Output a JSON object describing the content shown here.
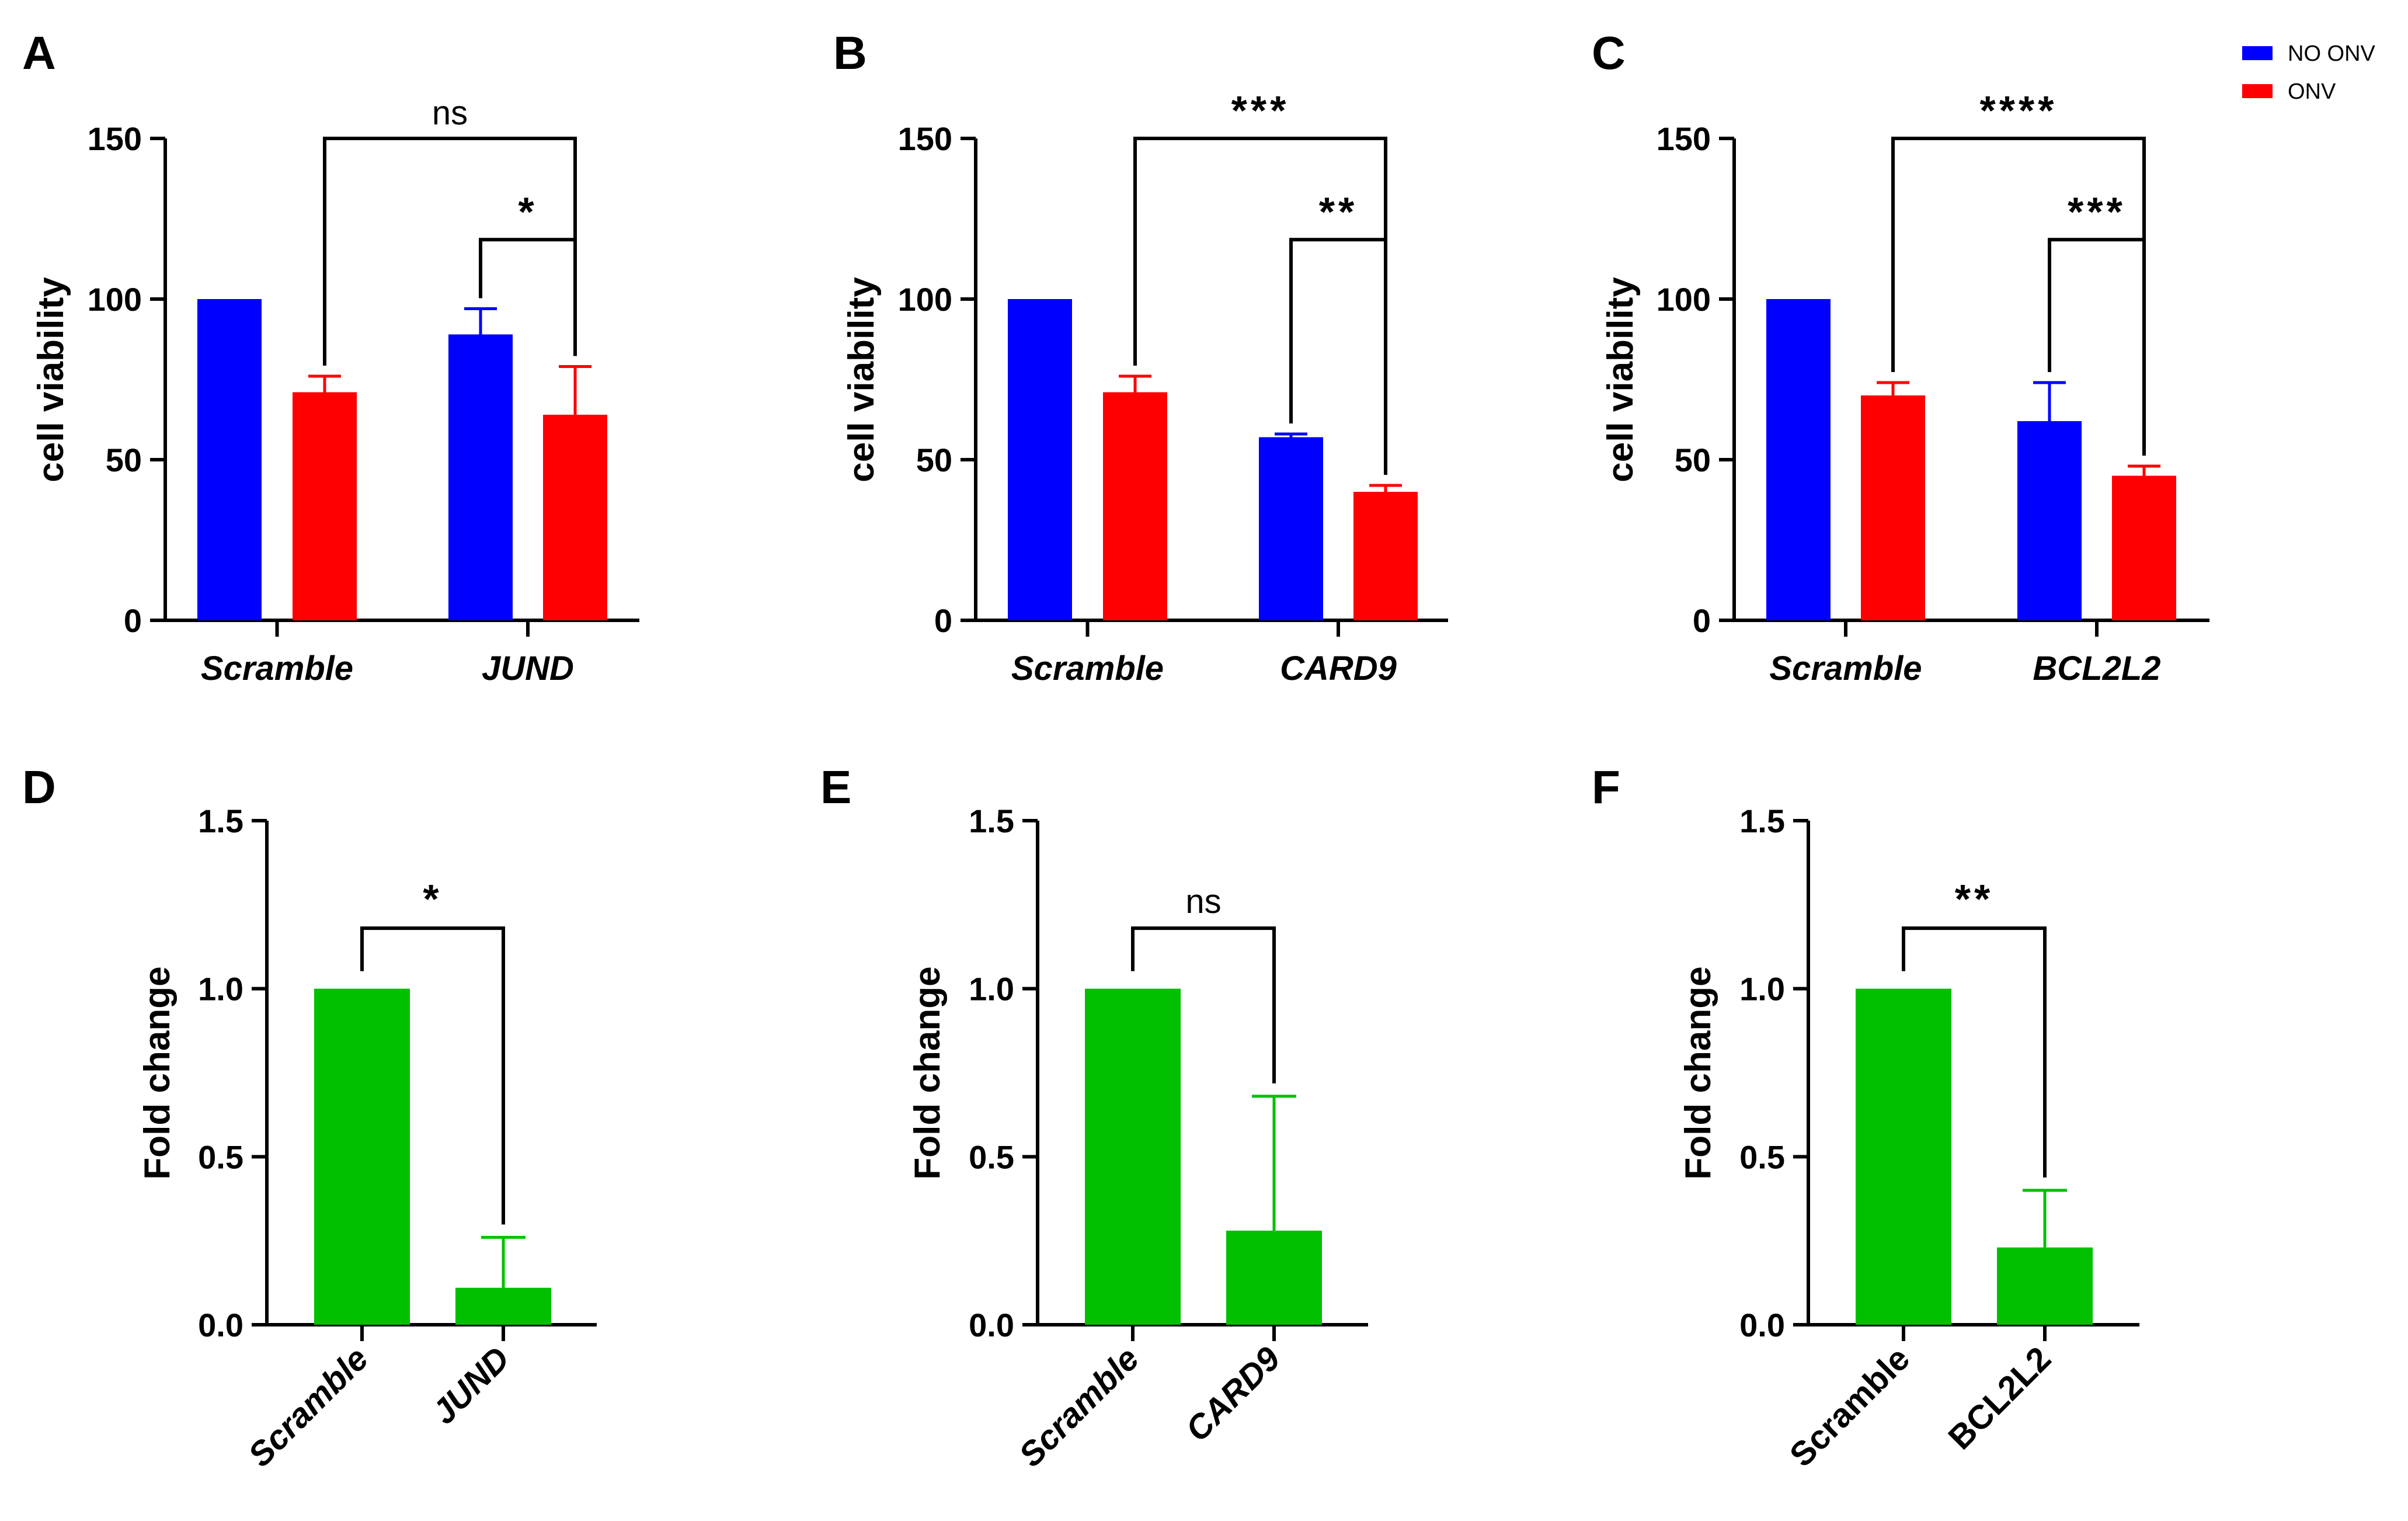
{
  "chart_data": [
    {
      "type": "bar",
      "panel": "A",
      "categories": [
        "Scramble",
        "JUND"
      ],
      "series": [
        {
          "name": "NO ONV",
          "values": [
            100,
            89
          ],
          "errors": [
            0,
            8
          ]
        },
        {
          "name": "ONV",
          "values": [
            71,
            64
          ],
          "errors": [
            5,
            15
          ]
        }
      ],
      "ylabel": "cell viability",
      "ylim": [
        0,
        150
      ],
      "yticks": [
        "0",
        "50",
        "100",
        "150"
      ],
      "italic_categories": [
        true,
        true
      ],
      "significance": [
        {
          "label": "ns",
          "from": "Scramble ONV",
          "to": "JUND ONV"
        },
        {
          "label": "*",
          "from": "JUND NO ONV",
          "to": "JUND ONV"
        }
      ]
    },
    {
      "type": "bar",
      "panel": "B",
      "categories": [
        "Scramble",
        "CARD9"
      ],
      "series": [
        {
          "name": "NO ONV",
          "values": [
            100,
            57
          ],
          "errors": [
            0,
            1
          ]
        },
        {
          "name": "ONV",
          "values": [
            71,
            40
          ],
          "errors": [
            5,
            2
          ]
        }
      ],
      "ylabel": "cell viability",
      "ylim": [
        0,
        150
      ],
      "yticks": [
        "0",
        "50",
        "100",
        "150"
      ],
      "italic_categories": [
        true,
        true
      ],
      "significance": [
        {
          "label": "***",
          "from": "Scramble ONV",
          "to": "CARD9 ONV"
        },
        {
          "label": "**",
          "from": "CARD9 NO ONV",
          "to": "CARD9 ONV"
        }
      ]
    },
    {
      "type": "bar",
      "panel": "C",
      "categories": [
        "Scramble",
        "BCL2L2"
      ],
      "series": [
        {
          "name": "NO ONV",
          "values": [
            100,
            62
          ],
          "errors": [
            0,
            12
          ]
        },
        {
          "name": "ONV",
          "values": [
            70,
            45
          ],
          "errors": [
            4,
            3
          ]
        }
      ],
      "ylabel": "cell viability",
      "ylim": [
        0,
        150
      ],
      "yticks": [
        "0",
        "50",
        "100",
        "150"
      ],
      "italic_categories": [
        true,
        true
      ],
      "significance": [
        {
          "label": "****",
          "from": "Scramble ONV",
          "to": "BCL2L2 ONV"
        },
        {
          "label": "***",
          "from": "BCL2L2 NO ONV",
          "to": "BCL2L2 ONV"
        }
      ]
    },
    {
      "type": "bar",
      "panel": "D",
      "categories": [
        "Scramble",
        "JUND"
      ],
      "values": [
        1.0,
        0.11
      ],
      "errors": [
        0,
        0.15
      ],
      "ylabel": "Fold change",
      "ylim": [
        0,
        1.5
      ],
      "yticks": [
        "0.0",
        "0.5",
        "1.0",
        "1.5"
      ],
      "italic_categories": [
        true,
        true
      ],
      "significance": [
        {
          "label": "*",
          "from": "Scramble",
          "to": "JUND"
        }
      ]
    },
    {
      "type": "bar",
      "panel": "E",
      "categories": [
        "Scramble",
        "CARD9"
      ],
      "values": [
        1.0,
        0.28
      ],
      "errors": [
        0,
        0.4
      ],
      "ylabel": "Fold change",
      "ylim": [
        0,
        1.5
      ],
      "yticks": [
        "0.0",
        "0.5",
        "1.0",
        "1.5"
      ],
      "italic_categories": [
        true,
        true
      ],
      "significance": [
        {
          "label": "ns",
          "from": "Scramble",
          "to": "CARD9"
        }
      ]
    },
    {
      "type": "bar",
      "panel": "F",
      "categories": [
        "Scramble",
        "BCL2L2"
      ],
      "values": [
        1.0,
        0.23
      ],
      "errors": [
        0,
        0.17
      ],
      "ylabel": "Fold change",
      "ylim": [
        0,
        1.5
      ],
      "yticks": [
        "0.0",
        "0.5",
        "1.0",
        "1.5"
      ],
      "italic_categories": [
        false,
        false
      ],
      "significance": [
        {
          "label": "**",
          "from": "Scramble",
          "to": "BCL2L2"
        }
      ]
    }
  ],
  "legend": {
    "items": [
      {
        "label": "NO ONV",
        "color": "#0000ff"
      },
      {
        "label": "ONV",
        "color": "#ff0000"
      }
    ],
    "placement": "top-right"
  },
  "colors": {
    "no_onv": "#0000ff",
    "onv": "#ff0000",
    "fold_change": "#00c000",
    "axis": "#000000"
  }
}
